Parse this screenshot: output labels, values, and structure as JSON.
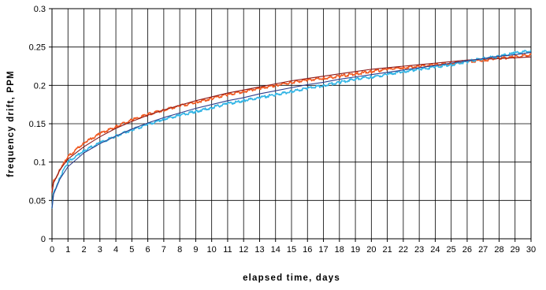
{
  "chart_data": {
    "type": "line",
    "title": "",
    "xlabel": "elapsed time, days",
    "ylabel": "frequency drift, PPM",
    "xlim": [
      0,
      30
    ],
    "ylim": [
      0,
      0.3
    ],
    "x_ticks": [
      "0",
      "1",
      "2",
      "3",
      "4",
      "5",
      "6",
      "7",
      "8",
      "9",
      "10",
      "11",
      "12",
      "13",
      "14",
      "15",
      "16",
      "17",
      "18",
      "19",
      "20",
      "21",
      "22",
      "23",
      "24",
      "25",
      "26",
      "27",
      "28",
      "29",
      "30"
    ],
    "y_ticks": [
      "0",
      "0.05",
      "0.1",
      "0.15",
      "0.2",
      "0.25",
      "0.3"
    ],
    "grid": true,
    "legend": "none",
    "series": [
      {
        "kind": "measured",
        "color": "#f05a22",
        "x": [
          0,
          0.1,
          0.5,
          1,
          2,
          3,
          4,
          5,
          6,
          7,
          8,
          9,
          10,
          11,
          12,
          13,
          14,
          15,
          16,
          17,
          18,
          19,
          20,
          21,
          22,
          23,
          24,
          25,
          26,
          27,
          28,
          29,
          30
        ],
        "values": [
          0.06,
          0.075,
          0.09,
          0.107,
          0.125,
          0.137,
          0.146,
          0.155,
          0.162,
          0.168,
          0.173,
          0.178,
          0.183,
          0.188,
          0.192,
          0.196,
          0.2,
          0.204,
          0.207,
          0.209,
          0.212,
          0.215,
          0.218,
          0.221,
          0.223,
          0.225,
          0.227,
          0.229,
          0.231,
          0.233,
          0.235,
          0.237,
          0.24
        ]
      },
      {
        "kind": "fit",
        "color": "#8b1a1a",
        "x": [
          0,
          0.1,
          0.5,
          1,
          2,
          3,
          4,
          5,
          6,
          7,
          8,
          9,
          10,
          11,
          12,
          13,
          14,
          15,
          16,
          17,
          18,
          19,
          20,
          21,
          22,
          23,
          24,
          25,
          26,
          27,
          28,
          29,
          30
        ],
        "values": [
          0.06,
          0.073,
          0.09,
          0.104,
          0.12,
          0.133,
          0.144,
          0.153,
          0.161,
          0.168,
          0.174,
          0.18,
          0.185,
          0.19,
          0.194,
          0.198,
          0.202,
          0.206,
          0.209,
          0.212,
          0.215,
          0.218,
          0.221,
          0.223,
          0.225,
          0.227,
          0.229,
          0.231,
          0.233,
          0.234,
          0.235,
          0.236,
          0.237
        ]
      },
      {
        "kind": "measured",
        "color": "#33b5e5",
        "x": [
          0,
          0.1,
          0.5,
          1,
          2,
          3,
          4,
          5,
          6,
          7,
          8,
          9,
          10,
          11,
          12,
          13,
          14,
          15,
          16,
          17,
          18,
          19,
          20,
          21,
          22,
          23,
          24,
          25,
          26,
          27,
          28,
          29,
          30
        ],
        "values": [
          0.04,
          0.06,
          0.08,
          0.1,
          0.115,
          0.125,
          0.134,
          0.142,
          0.149,
          0.156,
          0.161,
          0.166,
          0.171,
          0.176,
          0.18,
          0.184,
          0.188,
          0.192,
          0.196,
          0.2,
          0.204,
          0.208,
          0.211,
          0.214,
          0.218,
          0.221,
          0.224,
          0.227,
          0.231,
          0.235,
          0.238,
          0.242,
          0.245
        ]
      },
      {
        "kind": "fit",
        "color": "#2e3e8c",
        "x": [
          0,
          0.1,
          0.5,
          1,
          2,
          3,
          4,
          5,
          6,
          7,
          8,
          9,
          10,
          11,
          12,
          13,
          14,
          15,
          16,
          17,
          18,
          19,
          20,
          21,
          22,
          23,
          24,
          25,
          26,
          27,
          28,
          29,
          30
        ],
        "values": [
          0.04,
          0.058,
          0.078,
          0.094,
          0.112,
          0.124,
          0.134,
          0.143,
          0.151,
          0.158,
          0.164,
          0.17,
          0.175,
          0.18,
          0.184,
          0.189,
          0.193,
          0.197,
          0.201,
          0.204,
          0.208,
          0.211,
          0.214,
          0.217,
          0.22,
          0.223,
          0.226,
          0.229,
          0.232,
          0.235,
          0.238,
          0.24,
          0.243
        ]
      }
    ]
  }
}
